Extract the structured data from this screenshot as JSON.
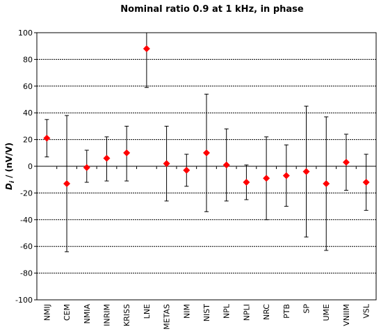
{
  "chart_data": {
    "type": "scatter",
    "title": "Nominal ratio 0.9 at 1 kHz, in phase",
    "ylabel_main": "D",
    "ylabel_sub": "i",
    "ylabel_unit": " / (nV/V)",
    "ylim": [
      -100,
      100
    ],
    "ytick_step": 20,
    "grid": true,
    "marker_color": "#ff0000",
    "categories": [
      "NMIJ",
      "CEM",
      "NMIA",
      "INRIM",
      "KRISS",
      "LNE",
      "METAS",
      "NIM",
      "NIST",
      "NPL",
      "NPLI",
      "NRC",
      "PTB",
      "SP",
      "UME",
      "VNIIM",
      "VSL"
    ],
    "series": [
      {
        "values": [
          21,
          -13,
          -1,
          6,
          10,
          88,
          2,
          -3,
          10,
          1,
          -12,
          -9,
          -7,
          -4,
          -13,
          3,
          -12
        ],
        "error_lower": [
          7,
          -64,
          -12,
          -11,
          -11,
          59,
          -26,
          -15,
          -34,
          -26,
          -25,
          -40,
          -30,
          -53,
          -63,
          -18,
          -33
        ],
        "error_upper": [
          35,
          38,
          12,
          22,
          30,
          100,
          30,
          9,
          54,
          28,
          1,
          22,
          16,
          45,
          37,
          24,
          9
        ]
      }
    ]
  }
}
